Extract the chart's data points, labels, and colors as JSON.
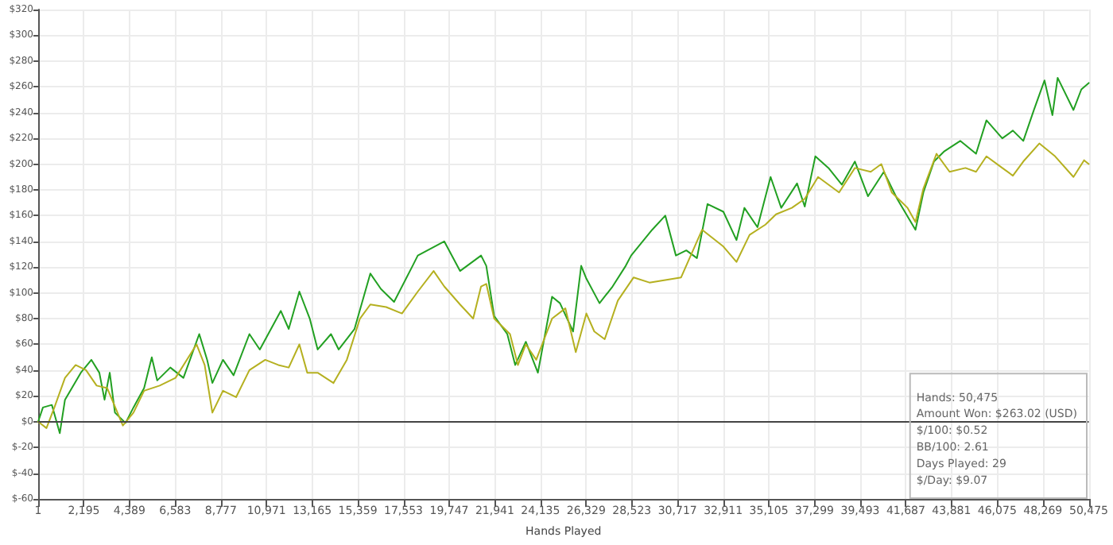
{
  "chart_data": {
    "type": "line",
    "xlabel": "Hands Played",
    "xlim": [
      1,
      50475
    ],
    "xticks": [
      1,
      {
        "value": 2195,
        "label": "2,195"
      },
      {
        "value": 4389,
        "label": "4,389"
      },
      {
        "value": 6583,
        "label": "6,583"
      },
      {
        "value": 8777,
        "label": "8,777"
      },
      {
        "value": 10971,
        "label": "10,971"
      },
      {
        "value": 13165,
        "label": "13,165"
      },
      {
        "value": 15359,
        "label": "15,359"
      },
      {
        "value": 17553,
        "label": "17,553"
      },
      {
        "value": 19747,
        "label": "19,747"
      },
      {
        "value": 21941,
        "label": "21,941"
      },
      {
        "value": 24135,
        "label": "24,135"
      },
      {
        "value": 26329,
        "label": "26,329"
      },
      {
        "value": 28523,
        "label": "28,523"
      },
      {
        "value": 30717,
        "label": "30,717"
      },
      {
        "value": 32911,
        "label": "32,911"
      },
      {
        "value": 35105,
        "label": "35,105"
      },
      {
        "value": 37299,
        "label": "37,299"
      },
      {
        "value": 39493,
        "label": "39,493"
      },
      {
        "value": 41687,
        "label": "41,687"
      },
      {
        "value": 43881,
        "label": "43,881"
      },
      {
        "value": 46075,
        "label": "46,075"
      },
      {
        "value": 48269,
        "label": "48,269"
      },
      {
        "value": 50475,
        "label": "50,475"
      }
    ],
    "ylim": [
      -60,
      320
    ],
    "yticks": [
      {
        "value": -60,
        "label": "$-60"
      },
      {
        "value": -40,
        "label": "$-40"
      },
      {
        "value": -20,
        "label": "$-20"
      },
      {
        "value": 0,
        "label": "$0"
      },
      {
        "value": 20,
        "label": "$20"
      },
      {
        "value": 40,
        "label": "$40"
      },
      {
        "value": 60,
        "label": "$60"
      },
      {
        "value": 80,
        "label": "$80"
      },
      {
        "value": 100,
        "label": "$100"
      },
      {
        "value": 120,
        "label": "$120"
      },
      {
        "value": 140,
        "label": "$140"
      },
      {
        "value": 160,
        "label": "$160"
      },
      {
        "value": 180,
        "label": "$180"
      },
      {
        "value": 200,
        "label": "$200"
      },
      {
        "value": 220,
        "label": "$220"
      },
      {
        "value": 240,
        "label": "$240"
      },
      {
        "value": 260,
        "label": "$260"
      },
      {
        "value": 280,
        "label": "$280"
      },
      {
        "value": 300,
        "label": "$300"
      },
      {
        "value": 320,
        "label": "$320"
      }
    ],
    "grid": true,
    "marker": "none",
    "line_style": "solid",
    "ref_lines": [
      {
        "axis": "y",
        "value": 0,
        "color": "#444444"
      }
    ],
    "annotations": [
      "Hands: 50,475",
      "Amount Won: $263.02 (USD)",
      "$/100: $0.52",
      "BB/100: 2.61",
      "Days Played: 29",
      "$/Day: $9.07"
    ],
    "series": [
      {
        "color": "#22a022",
        "x": [
          1,
          230,
          660,
          1040,
          1290,
          2050,
          2560,
          2940,
          3190,
          3440,
          3690,
          4200,
          4580,
          5090,
          5460,
          5720,
          6350,
          6980,
          7740,
          8120,
          8370,
          8880,
          9390,
          10150,
          10650,
          11660,
          12040,
          12550,
          13050,
          13430,
          14070,
          14440,
          15200,
          15960,
          16470,
          17100,
          17990,
          18240,
          19510,
          20270,
          21280,
          21530,
          21910,
          22540,
          22920,
          23430,
          24010,
          24690,
          25070,
          25700,
          26090,
          26340,
          26970,
          27600,
          28230,
          28490,
          29500,
          30130,
          30640,
          31140,
          31650,
          32160,
          32920,
          33550,
          33930,
          34560,
          35190,
          35700,
          36460,
          36830,
          37340,
          37970,
          38610,
          39240,
          39870,
          40630,
          41270,
          42150,
          42530,
          43040,
          43540,
          44300,
          45060,
          45560,
          46320,
          46830,
          47330,
          47840,
          48350,
          48730,
          48980,
          49740,
          50120,
          50475
        ],
        "values": [
          0,
          11,
          13,
          -9,
          17,
          38,
          48,
          38,
          17,
          38,
          7,
          -1,
          11,
          26,
          50,
          32,
          42,
          34,
          68,
          48,
          30,
          48,
          36,
          68,
          56,
          86,
          72,
          101,
          80,
          56,
          68,
          56,
          72,
          115,
          103,
          93,
          121,
          129,
          140,
          117,
          129,
          121,
          82,
          68,
          44,
          62,
          38,
          97,
          92,
          70,
          121,
          111,
          92,
          105,
          121,
          129,
          149,
          160,
          129,
          133,
          127,
          169,
          163,
          141,
          166,
          151,
          190,
          166,
          185,
          167,
          206,
          197,
          184,
          202,
          175,
          194,
          173,
          149,
          178,
          202,
          210,
          218,
          208,
          234,
          220,
          226,
          218,
          242,
          265,
          238,
          267,
          242,
          258,
          263
        ]
      },
      {
        "color": "#b5b020",
        "x": [
          1,
          400,
          780,
          1290,
          1800,
          2300,
          2810,
          3320,
          4070,
          4580,
          5090,
          5840,
          6600,
          7610,
          8000,
          8370,
          8880,
          9510,
          10150,
          10910,
          11540,
          12040,
          12550,
          12930,
          13430,
          14190,
          14830,
          15460,
          15960,
          16720,
          17480,
          18240,
          19000,
          19510,
          20270,
          20900,
          21280,
          21530,
          21910,
          22670,
          23050,
          23430,
          23930,
          24690,
          25330,
          25830,
          26340,
          26720,
          27220,
          27850,
          28610,
          29370,
          30890,
          31900,
          32920,
          33550,
          34180,
          34940,
          35450,
          36210,
          36830,
          37470,
          38480,
          39240,
          40000,
          40510,
          41010,
          41770,
          42150,
          42530,
          43160,
          43790,
          44550,
          45060,
          45560,
          46320,
          46830,
          47330,
          48100,
          48860,
          49740,
          50250,
          50475
        ],
        "values": [
          0,
          -5,
          11,
          34,
          44,
          40,
          28,
          26,
          -3,
          7,
          24,
          28,
          34,
          60,
          44,
          7,
          24,
          19,
          40,
          48,
          44,
          42,
          60,
          38,
          38,
          30,
          48,
          80,
          91,
          89,
          84,
          101,
          117,
          105,
          91,
          80,
          105,
          107,
          80,
          68,
          44,
          60,
          48,
          80,
          88,
          54,
          84,
          70,
          64,
          94,
          112,
          108,
          112,
          149,
          136,
          124,
          145,
          153,
          161,
          166,
          173,
          190,
          178,
          197,
          194,
          200,
          178,
          166,
          155,
          181,
          208,
          194,
          197,
          194,
          206,
          197,
          191,
          202,
          216,
          206,
          190,
          203,
          200
        ]
      }
    ]
  }
}
